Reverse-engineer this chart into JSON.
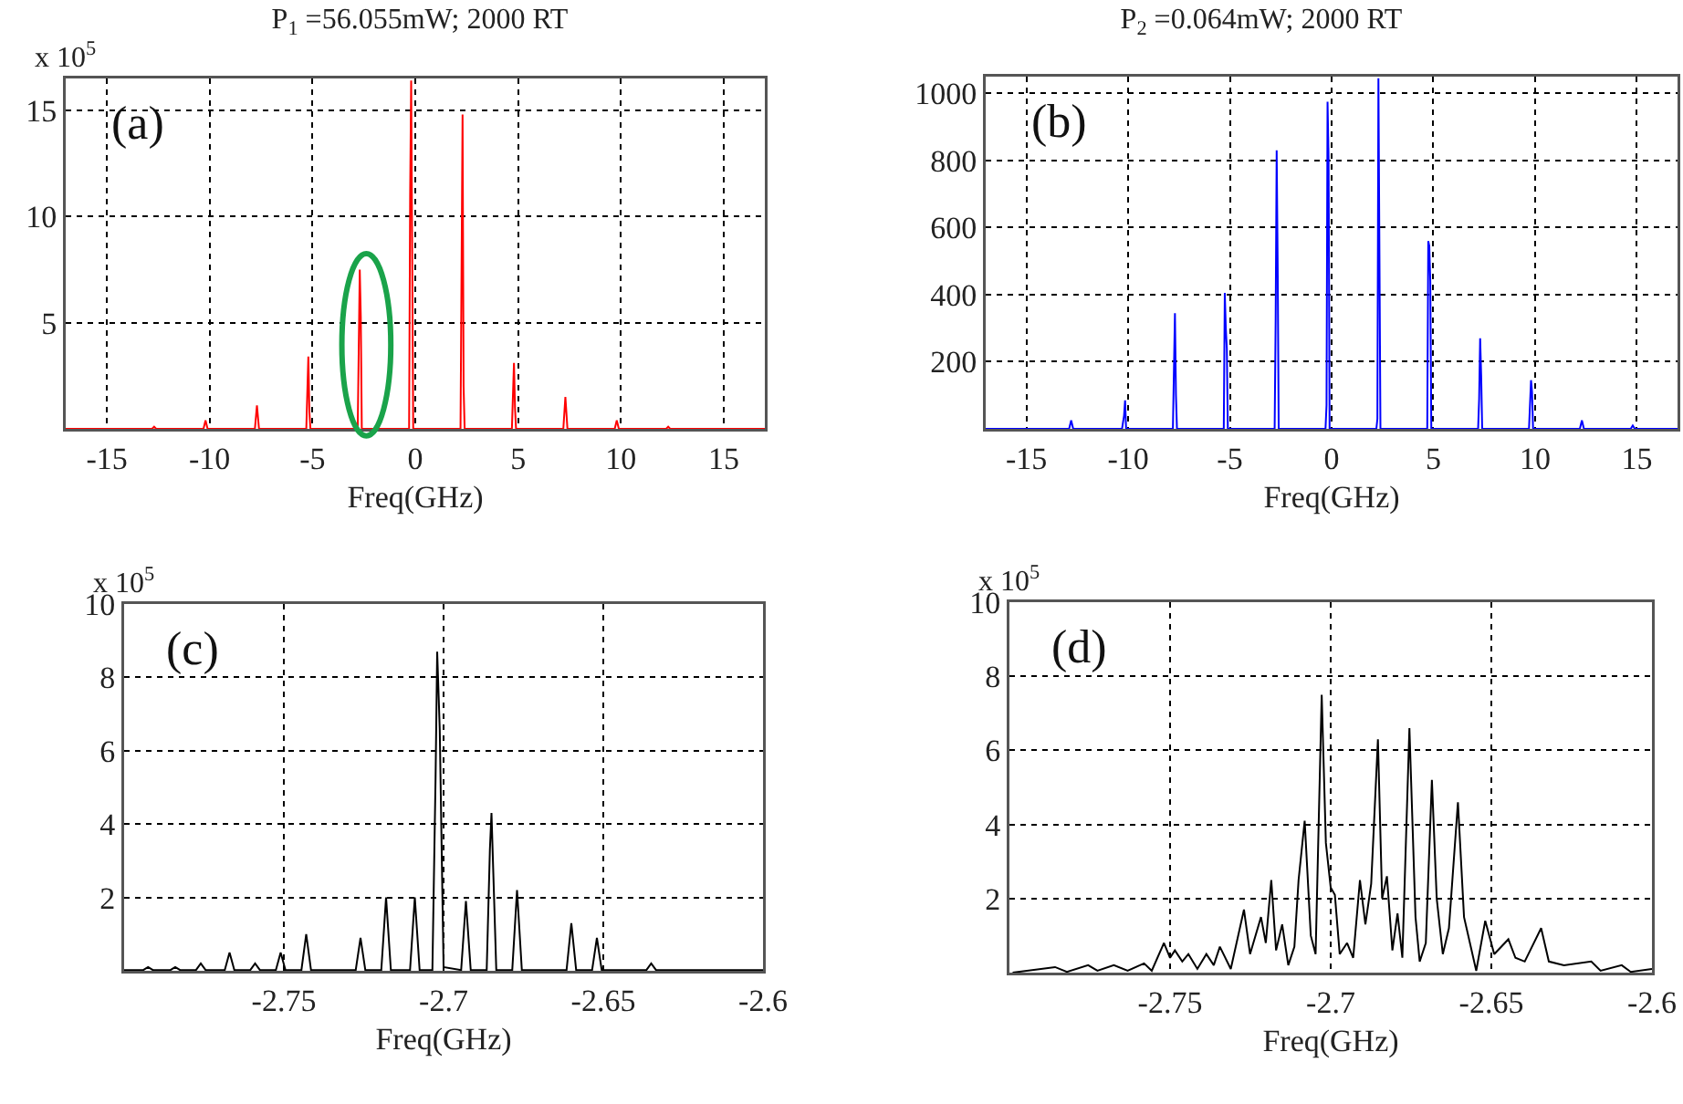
{
  "chart_data": [
    {
      "type": "line",
      "title": "P$_{1}$ =56.055mW; 2000 RT",
      "xlabel": "Freq(GHz)",
      "annotations": [
        "(a)",
        "x 10$^{5}$"
      ],
      "grid": true,
      "x": [
        -17,
        -12.8,
        -12.7,
        -12.6,
        -10.3,
        -10.2,
        -10.1,
        -7.8,
        -7.7,
        -7.6,
        -5.3,
        -5.2,
        -5.15,
        -5.1,
        -2.8,
        -2.7,
        -2.65,
        -2.6,
        -0.3,
        -0.25,
        -0.2,
        -0.1,
        2.2,
        2.3,
        2.35,
        2.4,
        4.7,
        4.8,
        4.85,
        4.9,
        7.2,
        7.3,
        7.4,
        9.7,
        9.8,
        9.9,
        12.2,
        12.3,
        12.4,
        17
      ],
      "series": [
        {
          "color": "#ff0000",
          "values": [
            0,
            0,
            0.1,
            0,
            0,
            0.4,
            0,
            0,
            1.1,
            0,
            0,
            3.4,
            0.8,
            0,
            0,
            7.5,
            5.3,
            0,
            0,
            11,
            16.4,
            0,
            0,
            14.8,
            2,
            0,
            0,
            3.1,
            1,
            0,
            0,
            1.5,
            0,
            0,
            0.4,
            0,
            0,
            0.1,
            0,
            0
          ]
        }
      ],
      "xlim": [
        -17,
        17
      ],
      "ylim": [
        0,
        16.5
      ],
      "xticks": [
        -15,
        -10,
        -5,
        0,
        5,
        10,
        15
      ],
      "yticks": [
        5,
        10,
        15
      ]
    },
    {
      "type": "line",
      "title": "P$_{2}$ =0.064mW; 2000 RT",
      "xlabel": "Freq(GHz)",
      "annotations": [
        "(b)"
      ],
      "grid": true,
      "x": [
        -17,
        -12.9,
        -12.8,
        -12.7,
        -10.3,
        -10.2,
        -10.15,
        -10.1,
        -7.8,
        -7.7,
        -7.65,
        -7.6,
        -5.3,
        -5.25,
        -5.2,
        -5.15,
        -5.1,
        -2.8,
        -2.75,
        -2.7,
        -2.65,
        -2.6,
        -0.3,
        -0.25,
        -0.2,
        -0.15,
        -0.1,
        2.2,
        2.25,
        2.3,
        2.35,
        2.4,
        4.7,
        4.75,
        4.8,
        4.85,
        4.9,
        7.2,
        7.25,
        7.3,
        7.35,
        7.4,
        9.7,
        9.8,
        9.85,
        9.9,
        12.2,
        12.3,
        12.4,
        14.7,
        14.8,
        14.9,
        17
      ],
      "series": [
        {
          "color": "#0000ff",
          "values": [
            0,
            0,
            25,
            0,
            0,
            40,
            85,
            0,
            0,
            345,
            100,
            0,
            0,
            405,
            300,
            240,
            0,
            0,
            330,
            830,
            480,
            0,
            0,
            70,
            975,
            810,
            0,
            0,
            30,
            1045,
            520,
            0,
            0,
            560,
            545,
            440,
            0,
            0,
            90,
            270,
            160,
            0,
            0,
            145,
            110,
            0,
            0,
            25,
            0,
            0,
            10,
            0,
            0
          ]
        }
      ],
      "xlim": [
        -17,
        17
      ],
      "ylim": [
        0,
        1050
      ],
      "xticks": [
        -15,
        -10,
        -5,
        0,
        5,
        10,
        15
      ],
      "yticks": [
        200,
        400,
        600,
        800,
        1000
      ]
    },
    {
      "type": "line",
      "xlabel": "Freq(GHz)",
      "annotations": [
        "(c)",
        "x 10$^{5}$"
      ],
      "grid": true,
      "x": [
        -2.8,
        -2.794,
        -2.7925,
        -2.791,
        -2.7855,
        -2.784,
        -2.7825,
        -2.7775,
        -2.776,
        -2.7745,
        -2.7685,
        -2.767,
        -2.7655,
        -2.7605,
        -2.759,
        -2.7575,
        -2.7525,
        -2.751,
        -2.7495,
        -2.7445,
        -2.743,
        -2.7415,
        -2.7275,
        -2.726,
        -2.7245,
        -2.7195,
        -2.718,
        -2.7165,
        -2.7105,
        -2.709,
        -2.7075,
        -2.7035,
        -2.7025,
        -2.702,
        -2.7012,
        -2.7,
        -2.6945,
        -2.693,
        -2.6915,
        -2.6865,
        -2.6855,
        -2.685,
        -2.6835,
        -2.6785,
        -2.677,
        -2.6755,
        -2.6615,
        -2.66,
        -2.6585,
        -2.6535,
        -2.652,
        -2.6505,
        -2.6365,
        -2.635,
        -2.6335,
        -2.6
      ],
      "series": [
        {
          "color": "#000000",
          "values": [
            0.02,
            0.02,
            0.1,
            0.02,
            0.02,
            0.1,
            0.02,
            0.02,
            0.2,
            0.02,
            0.02,
            0.5,
            0.02,
            0.02,
            0.2,
            0.02,
            0.02,
            0.5,
            0.02,
            0.02,
            1.0,
            0.02,
            0.02,
            0.9,
            0.02,
            0.02,
            2.0,
            0.02,
            0.02,
            2.0,
            0.02,
            0.02,
            5.3,
            8.7,
            6.6,
            0.1,
            0.02,
            1.9,
            0.02,
            0.02,
            3.3,
            4.3,
            0.02,
            0.02,
            2.2,
            0.02,
            0.02,
            1.3,
            0.02,
            0.02,
            0.9,
            0.02,
            0.02,
            0.2,
            0.02,
            0.02
          ]
        }
      ],
      "xlim": [
        -2.8,
        -2.6
      ],
      "ylim": [
        0,
        10
      ],
      "xticks": [
        -2.75,
        -2.7,
        -2.65,
        -2.6
      ],
      "yticks": [
        2,
        4,
        6,
        8,
        10
      ]
    },
    {
      "type": "line",
      "xlabel": "Freq(GHz)",
      "annotations": [
        "(d)",
        "x 10$^{5}$"
      ],
      "grid": true,
      "x": [
        -2.799,
        -2.7858,
        -2.7821,
        -2.7755,
        -2.7726,
        -2.7675,
        -2.7632,
        -2.7581,
        -2.7557,
        -2.7519,
        -2.75,
        -2.7485,
        -2.7462,
        -2.7443,
        -2.7415,
        -2.7387,
        -2.7364,
        -2.7345,
        -2.7311,
        -2.727,
        -2.7251,
        -2.7217,
        -2.7202,
        -2.7185,
        -2.717,
        -2.7151,
        -2.7132,
        -2.7113,
        -2.71,
        -2.7081,
        -2.7062,
        -2.7047,
        -2.7028,
        -2.7015,
        -2.7,
        -2.6987,
        -2.6972,
        -2.6949,
        -2.693,
        -2.6909,
        -2.6892,
        -2.6874,
        -2.6853,
        -2.684,
        -2.6825,
        -2.6808,
        -2.6792,
        -2.6777,
        -2.6755,
        -2.6736,
        -2.6723,
        -2.6704,
        -2.6685,
        -2.667,
        -2.6651,
        -2.6632,
        -2.6604,
        -2.6585,
        -2.6547,
        -2.6519,
        -2.6491,
        -2.6447,
        -2.6425,
        -2.6396,
        -2.6345,
        -2.6321,
        -2.6274,
        -2.6189,
        -2.616,
        -2.6094,
        -2.6066,
        -2.6
      ],
      "series": [
        {
          "color": "#000000",
          "values": [
            0,
            0.15,
            0.02,
            0.2,
            0.05,
            0.2,
            0.05,
            0.25,
            0.05,
            0.8,
            0.4,
            0.6,
            0.3,
            0.5,
            0.1,
            0.5,
            0.2,
            0.7,
            0.1,
            1.7,
            0.5,
            1.5,
            0.8,
            2.5,
            0.6,
            1.3,
            0.2,
            0.7,
            2.5,
            4.1,
            1.0,
            0.5,
            7.5,
            3.5,
            2.3,
            2.1,
            0.5,
            0.8,
            0.4,
            2.5,
            1.3,
            2.4,
            6.3,
            2.0,
            2.6,
            0.6,
            1.6,
            0.4,
            6.6,
            1.5,
            0.3,
            0.8,
            5.2,
            2.0,
            0.5,
            1.2,
            4.6,
            1.5,
            0.05,
            1.4,
            0.5,
            0.9,
            0.4,
            0.3,
            1.2,
            0.3,
            0.2,
            0.3,
            0.05,
            0.2,
            0.02,
            0.1
          ]
        }
      ],
      "xlim": [
        -2.8,
        -2.6
      ],
      "ylim": [
        0,
        10
      ],
      "xticks": [
        -2.75,
        -2.7,
        -2.65,
        -2.6
      ],
      "yticks": [
        2,
        4,
        6,
        8,
        10
      ]
    }
  ]
}
